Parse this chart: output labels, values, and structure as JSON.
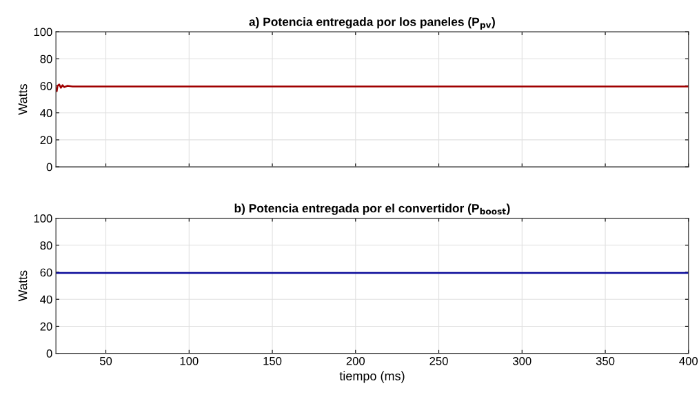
{
  "chart_data": [
    {
      "type": "line",
      "title": "a) Potencia entregada por los paneles (P$_{pv}$)",
      "ylabel": "Watts",
      "series": [
        {
          "color": "#a00000",
          "x": [
            20,
            20.5,
            21,
            22,
            23,
            24,
            25,
            27,
            30,
            35,
            100,
            200,
            300,
            400
          ],
          "values": [
            58,
            56,
            60,
            61,
            58.5,
            60.5,
            59,
            60,
            59.5,
            59.5,
            59.5,
            59.5,
            59.5,
            59.5
          ]
        }
      ],
      "xlim": [
        20,
        400
      ],
      "ylim": [
        0,
        100
      ],
      "xticks": [
        50,
        100,
        150,
        200,
        250,
        300,
        350,
        400
      ],
      "yticks": [
        0,
        20,
        40,
        60,
        80,
        100
      ],
      "grid": true,
      "tick_labels": "y"
    },
    {
      "type": "line",
      "title": "b) Potencia entregada por el convertidor (P$_{boost}$)",
      "ylabel": "Watts",
      "xlabel": "tiempo (ms)",
      "series": [
        {
          "color": "#0a0a9a",
          "x": [
            20,
            100,
            200,
            300,
            400
          ],
          "values": [
            59.5,
            59.5,
            59.5,
            59.5,
            59.5
          ]
        }
      ],
      "xlim": [
        20,
        400
      ],
      "ylim": [
        0,
        100
      ],
      "xticks": [
        50,
        100,
        150,
        200,
        250,
        300,
        350,
        400
      ],
      "yticks": [
        0,
        20,
        40,
        60,
        80,
        100
      ],
      "grid": true
    }
  ]
}
